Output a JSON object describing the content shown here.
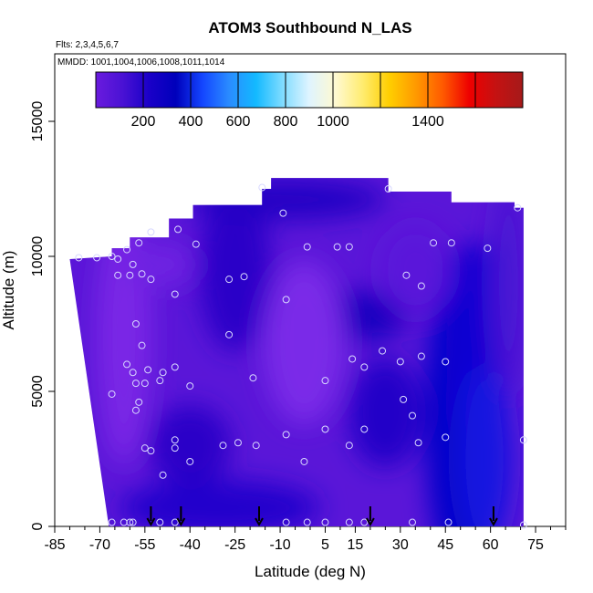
{
  "chart_data": {
    "type": "heatmap",
    "title": "ATOM3 Southbound N_LAS",
    "flights_note": "Flts: 2,3,4,5,6,7",
    "dates_note": "MMDD: 1001,1004,1006,1008,1011,1014",
    "xlabel": "Latitude (deg N)",
    "ylabel": "Altitude (m)",
    "xlim": [
      -85,
      85
    ],
    "ylim": [
      0,
      17500
    ],
    "x_ticks": [
      -85,
      -70,
      -55,
      -40,
      -25,
      -10,
      5,
      15,
      30,
      45,
      60,
      75
    ],
    "x_minor_ticks": [
      -80,
      -75,
      -65,
      -60,
      -50,
      -45,
      -35,
      -30,
      -20,
      -15,
      -5,
      0,
      10,
      20,
      25,
      35,
      40,
      50,
      55,
      65,
      70,
      80,
      85
    ],
    "y_ticks": [
      0,
      5000,
      10000,
      15000
    ],
    "colorbar": {
      "range": [
        0,
        1800
      ],
      "ticks": [
        200,
        400,
        600,
        800,
        1000,
        1400
      ],
      "divisions": [
        200,
        400,
        600,
        800,
        1000,
        1200,
        1400,
        1600
      ]
    },
    "colors": {
      "scale": [
        "#6a1bde",
        "#4a12d4",
        "#1a00c8",
        "#0000bb",
        "#1446ff",
        "#2a8cff",
        "#13b9ff",
        "#7fdcff",
        "#dff4ff",
        "#fff9d0",
        "#ffec70",
        "#ffce00",
        "#ff9900",
        "#ff5a00",
        "#ee0000",
        "#c41212",
        "#a51a1a"
      ]
    },
    "curtain_top": [
      {
        "lat": -80,
        "alt": 9900
      },
      {
        "lat": -66,
        "alt": 10000
      },
      {
        "lat": -66,
        "alt": 10300
      },
      {
        "lat": -60,
        "alt": 10300
      },
      {
        "lat": -60,
        "alt": 10700
      },
      {
        "lat": -47,
        "alt": 10700
      },
      {
        "lat": -47,
        "alt": 11400
      },
      {
        "lat": -39,
        "alt": 11400
      },
      {
        "lat": -39,
        "alt": 11900
      },
      {
        "lat": -16,
        "alt": 11900
      },
      {
        "lat": -16,
        "alt": 12500
      },
      {
        "lat": -13,
        "alt": 12500
      },
      {
        "lat": -13,
        "alt": 12900
      },
      {
        "lat": 26,
        "alt": 12900
      },
      {
        "lat": 26,
        "alt": 12400
      },
      {
        "lat": 47,
        "alt": 12400
      },
      {
        "lat": 47,
        "alt": 12000
      },
      {
        "lat": 68,
        "alt": 12000
      },
      {
        "lat": 68,
        "alt": 11800
      },
      {
        "lat": 71,
        "alt": 11800
      }
    ],
    "curtain_bottom_lat": -67,
    "curtain_right_lat": 71,
    "samples": [
      {
        "lat": -77,
        "alt": 9950,
        "v": 150
      },
      {
        "lat": -71,
        "alt": 9950,
        "v": 150
      },
      {
        "lat": -66,
        "alt": 10000,
        "v": 150
      },
      {
        "lat": -64,
        "alt": 9900,
        "v": 150
      },
      {
        "lat": -61,
        "alt": 10250,
        "v": 150
      },
      {
        "lat": -59,
        "alt": 9700,
        "v": 150
      },
      {
        "lat": -57,
        "alt": 10500,
        "v": 150
      },
      {
        "lat": -53,
        "alt": 10900,
        "v": 150
      },
      {
        "lat": -44,
        "alt": 11000,
        "v": 150
      },
      {
        "lat": -38,
        "alt": 10450,
        "v": 150
      },
      {
        "lat": -64,
        "alt": 9300,
        "v": 150
      },
      {
        "lat": -60,
        "alt": 9300,
        "v": 150
      },
      {
        "lat": -56,
        "alt": 9350,
        "v": 150
      },
      {
        "lat": -53,
        "alt": 9150,
        "v": 150
      },
      {
        "lat": -45,
        "alt": 8600,
        "v": 150
      },
      {
        "lat": -27,
        "alt": 9150,
        "v": 150
      },
      {
        "lat": -22,
        "alt": 9250,
        "v": 150
      },
      {
        "lat": -16,
        "alt": 12550,
        "v": 150
      },
      {
        "lat": -9,
        "alt": 11600,
        "v": 150
      },
      {
        "lat": -8,
        "alt": 8400,
        "v": 150
      },
      {
        "lat": -1,
        "alt": 10350,
        "v": 150
      },
      {
        "lat": 9,
        "alt": 10350,
        "v": 150
      },
      {
        "lat": 13,
        "alt": 10350,
        "v": 150
      },
      {
        "lat": 26,
        "alt": 12500,
        "v": 150
      },
      {
        "lat": 32,
        "alt": 9300,
        "v": 150
      },
      {
        "lat": 37,
        "alt": 8900,
        "v": 150
      },
      {
        "lat": 41,
        "alt": 10500,
        "v": 150
      },
      {
        "lat": 47,
        "alt": 10500,
        "v": 150
      },
      {
        "lat": 59,
        "alt": 10300,
        "v": 150
      },
      {
        "lat": 69,
        "alt": 11800,
        "v": 150
      },
      {
        "lat": -58,
        "alt": 7500,
        "v": 150
      },
      {
        "lat": -56,
        "alt": 6700,
        "v": 150
      },
      {
        "lat": -61,
        "alt": 6000,
        "v": 150
      },
      {
        "lat": -59,
        "alt": 5700,
        "v": 150
      },
      {
        "lat": -54,
        "alt": 5800,
        "v": 150
      },
      {
        "lat": -49,
        "alt": 5700,
        "v": 150
      },
      {
        "lat": -45,
        "alt": 5900,
        "v": 150
      },
      {
        "lat": -66,
        "alt": 4900,
        "v": 150
      },
      {
        "lat": -58,
        "alt": 5300,
        "v": 150
      },
      {
        "lat": -55,
        "alt": 5300,
        "v": 150
      },
      {
        "lat": -50,
        "alt": 5400,
        "v": 150
      },
      {
        "lat": -40,
        "alt": 5200,
        "v": 150
      },
      {
        "lat": -27,
        "alt": 7100,
        "v": 150
      },
      {
        "lat": -19,
        "alt": 5500,
        "v": 150
      },
      {
        "lat": 5,
        "alt": 5400,
        "v": 150
      },
      {
        "lat": 14,
        "alt": 6200,
        "v": 150
      },
      {
        "lat": 18,
        "alt": 5900,
        "v": 150
      },
      {
        "lat": 24,
        "alt": 6500,
        "v": 150
      },
      {
        "lat": 30,
        "alt": 6100,
        "v": 150
      },
      {
        "lat": 37,
        "alt": 6300,
        "v": 150
      },
      {
        "lat": 45,
        "alt": 6100,
        "v": 150
      },
      {
        "lat": -58,
        "alt": 4300,
        "v": 150
      },
      {
        "lat": -57,
        "alt": 4600,
        "v": 150
      },
      {
        "lat": -55,
        "alt": 2900,
        "v": 150
      },
      {
        "lat": -53,
        "alt": 2800,
        "v": 150
      },
      {
        "lat": -45,
        "alt": 3200,
        "v": 150
      },
      {
        "lat": -45,
        "alt": 2900,
        "v": 150
      },
      {
        "lat": -49,
        "alt": 1900,
        "v": 150
      },
      {
        "lat": -40,
        "alt": 2400,
        "v": 150
      },
      {
        "lat": -29,
        "alt": 3000,
        "v": 150
      },
      {
        "lat": -24,
        "alt": 3100,
        "v": 150
      },
      {
        "lat": -18,
        "alt": 3000,
        "v": 150
      },
      {
        "lat": -8,
        "alt": 3400,
        "v": 150
      },
      {
        "lat": -2,
        "alt": 2400,
        "v": 150
      },
      {
        "lat": 5,
        "alt": 3600,
        "v": 150
      },
      {
        "lat": 13,
        "alt": 3000,
        "v": 150
      },
      {
        "lat": 18,
        "alt": 3600,
        "v": 150
      },
      {
        "lat": 31,
        "alt": 4700,
        "v": 150
      },
      {
        "lat": 34,
        "alt": 4100,
        "v": 150
      },
      {
        "lat": 36,
        "alt": 3100,
        "v": 150
      },
      {
        "lat": 45,
        "alt": 3300,
        "v": 150
      },
      {
        "lat": 71,
        "alt": 3200,
        "v": 150
      },
      {
        "lat": -66,
        "alt": 150,
        "v": 150
      },
      {
        "lat": -62,
        "alt": 150,
        "v": 150
      },
      {
        "lat": -60,
        "alt": 150,
        "v": 150
      },
      {
        "lat": -59,
        "alt": 150,
        "v": 150
      },
      {
        "lat": -50,
        "alt": 150,
        "v": 150
      },
      {
        "lat": -45,
        "alt": 150,
        "v": 150
      },
      {
        "lat": -8,
        "alt": 150,
        "v": 150
      },
      {
        "lat": -1,
        "alt": 150,
        "v": 150
      },
      {
        "lat": 5,
        "alt": 150,
        "v": 150
      },
      {
        "lat": 13,
        "alt": 150,
        "v": 150
      },
      {
        "lat": 18,
        "alt": 150,
        "v": 150
      },
      {
        "lat": 34,
        "alt": 150,
        "v": 150
      },
      {
        "lat": 46,
        "alt": 150,
        "v": 150
      },
      {
        "lat": 71,
        "alt": 50,
        "v": 150
      }
    ],
    "profile_arrows_lat": [
      -53,
      -43,
      -17,
      20,
      61
    ],
    "field_description": "Mostly low values (~50-300) in purple and dark blue; darkest blue column near 45 to 60 N and mid-level band near 10 to 25 N."
  }
}
